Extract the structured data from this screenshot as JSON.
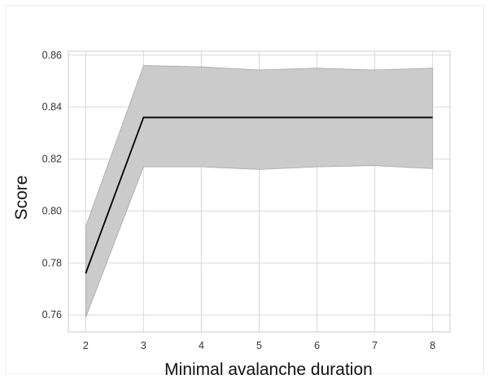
{
  "chart_data": {
    "type": "line",
    "title": "",
    "xlabel": "Minimal avalanche duration",
    "ylabel": "Score",
    "x": [
      2,
      3,
      4,
      5,
      6,
      7,
      8
    ],
    "xlim": [
      1.7,
      8.3
    ],
    "ylim": [
      0.7535,
      0.8615
    ],
    "xticks": [
      2,
      3,
      4,
      5,
      6,
      7,
      8
    ],
    "yticks": [
      "0.76",
      "0.78",
      "0.80",
      "0.82",
      "0.84",
      "0.86"
    ],
    "grid": true,
    "series": [
      {
        "values": [
          0.776,
          0.836,
          0.836,
          0.836,
          0.836,
          0.836,
          0.836
        ],
        "lower": [
          0.759,
          0.817,
          0.817,
          0.816,
          0.817,
          0.8175,
          0.8163
        ],
        "upper": [
          0.794,
          0.856,
          0.8555,
          0.8543,
          0.855,
          0.8543,
          0.855
        ],
        "color": "#000000",
        "band_color": "#c8c8c8"
      }
    ]
  }
}
